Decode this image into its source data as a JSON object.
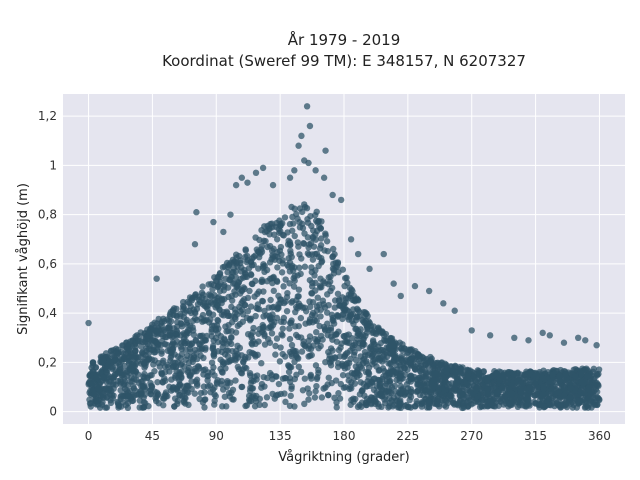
{
  "chart_data": {
    "type": "scatter",
    "title_lines": [
      "År 1979 - 2019",
      "Koordinat (Sweref 99 TM): E 348157, N 6207327"
    ],
    "xlabel": "Vågriktning (grader)",
    "ylabel": "Signifikant våghöjd (m)",
    "xlim": [
      -18,
      378
    ],
    "ylim": [
      -0.05,
      1.29
    ],
    "x_ticks": [
      0,
      45,
      90,
      135,
      180,
      225,
      270,
      315,
      360
    ],
    "x_tick_labels": [
      "0",
      "45",
      "90",
      "135",
      "180",
      "225",
      "270",
      "315",
      "360"
    ],
    "y_ticks": [
      0,
      0.2,
      0.4,
      0.6,
      0.8,
      1,
      1.2
    ],
    "y_tick_labels": [
      "0",
      "0,2",
      "0,4",
      "0,6",
      "0,8",
      "1",
      "1,2"
    ],
    "grid": true,
    "marker_color": "#2f5468",
    "background_color": "#e5e5ef",
    "envelope": {
      "x": [
        0,
        20,
        45,
        70,
        90,
        110,
        125,
        135,
        145,
        155,
        165,
        175,
        185,
        200,
        225,
        250,
        270,
        300,
        330,
        360
      ],
      "y_typical_max": [
        0.2,
        0.26,
        0.36,
        0.46,
        0.56,
        0.68,
        0.76,
        0.8,
        0.84,
        0.86,
        0.78,
        0.64,
        0.5,
        0.36,
        0.26,
        0.2,
        0.17,
        0.16,
        0.17,
        0.18
      ]
    },
    "outliers": [
      {
        "x": 0,
        "y": 0.36
      },
      {
        "x": 48,
        "y": 0.54
      },
      {
        "x": 75,
        "y": 0.68
      },
      {
        "x": 76,
        "y": 0.81
      },
      {
        "x": 88,
        "y": 0.77
      },
      {
        "x": 95,
        "y": 0.73
      },
      {
        "x": 100,
        "y": 0.8
      },
      {
        "x": 104,
        "y": 0.92
      },
      {
        "x": 108,
        "y": 0.95
      },
      {
        "x": 112,
        "y": 0.93
      },
      {
        "x": 118,
        "y": 0.97
      },
      {
        "x": 123,
        "y": 0.99
      },
      {
        "x": 130,
        "y": 0.92
      },
      {
        "x": 142,
        "y": 0.95
      },
      {
        "x": 145,
        "y": 0.98
      },
      {
        "x": 148,
        "y": 1.08
      },
      {
        "x": 150,
        "y": 1.12
      },
      {
        "x": 152,
        "y": 1.02
      },
      {
        "x": 154,
        "y": 1.24
      },
      {
        "x": 156,
        "y": 1.16
      },
      {
        "x": 155,
        "y": 1.01
      },
      {
        "x": 160,
        "y": 0.98
      },
      {
        "x": 166,
        "y": 0.95
      },
      {
        "x": 167,
        "y": 1.06
      },
      {
        "x": 172,
        "y": 0.88
      },
      {
        "x": 178,
        "y": 0.86
      },
      {
        "x": 185,
        "y": 0.7
      },
      {
        "x": 190,
        "y": 0.64
      },
      {
        "x": 198,
        "y": 0.58
      },
      {
        "x": 208,
        "y": 0.64
      },
      {
        "x": 215,
        "y": 0.52
      },
      {
        "x": 220,
        "y": 0.47
      },
      {
        "x": 230,
        "y": 0.51
      },
      {
        "x": 240,
        "y": 0.49
      },
      {
        "x": 250,
        "y": 0.44
      },
      {
        "x": 258,
        "y": 0.41
      },
      {
        "x": 270,
        "y": 0.33
      },
      {
        "x": 283,
        "y": 0.31
      },
      {
        "x": 300,
        "y": 0.3
      },
      {
        "x": 310,
        "y": 0.29
      },
      {
        "x": 320,
        "y": 0.32
      },
      {
        "x": 325,
        "y": 0.31
      },
      {
        "x": 335,
        "y": 0.28
      },
      {
        "x": 345,
        "y": 0.3
      },
      {
        "x": 350,
        "y": 0.29
      },
      {
        "x": 358,
        "y": 0.27
      }
    ]
  }
}
